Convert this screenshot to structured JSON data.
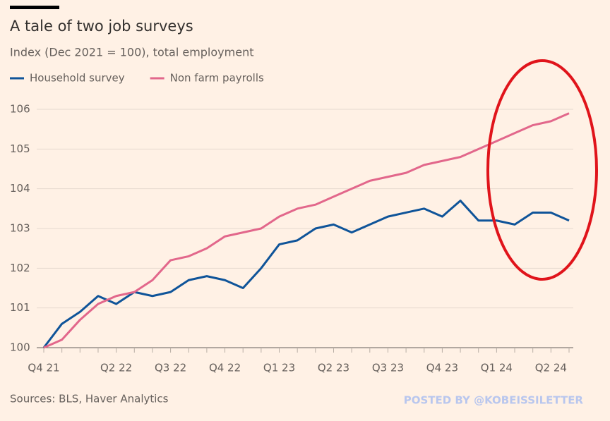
{
  "chart_data": {
    "type": "line",
    "title": "A tale of two job surveys",
    "subtitle": "Index (Dec 2021 = 100), total employment",
    "source": "Sources: BLS, Haver Analytics",
    "watermark": "POSTED BY @KOBEISSILETTER",
    "categories": [
      "Q4 21",
      null,
      null,
      null,
      "Q2 22",
      null,
      null,
      "Q3 22",
      null,
      null,
      "Q4 22",
      null,
      null,
      "Q1 23",
      null,
      null,
      "Q2 23",
      null,
      null,
      "Q3 23",
      null,
      null,
      "Q4 23",
      null,
      null,
      "Q1 24",
      null,
      null,
      "Q2 24",
      null
    ],
    "series": [
      {
        "name": "Household survey",
        "color": "#0f5499",
        "values": [
          100,
          100.6,
          100.9,
          101.3,
          101.1,
          101.4,
          101.3,
          101.4,
          101.7,
          101.8,
          101.7,
          101.5,
          102.0,
          102.6,
          102.7,
          103.0,
          103.1,
          102.9,
          103.1,
          103.3,
          103.4,
          103.5,
          103.3,
          103.7,
          103.2,
          103.2,
          103.1,
          103.4,
          103.4,
          103.2
        ]
      },
      {
        "name": "Non farm payrolls",
        "color": "#e2678b",
        "values": [
          100,
          100.2,
          100.7,
          101.1,
          101.3,
          101.4,
          101.7,
          102.2,
          102.3,
          102.5,
          102.8,
          102.9,
          103.0,
          103.3,
          103.5,
          103.6,
          103.8,
          104.0,
          104.2,
          104.3,
          104.4,
          104.6,
          104.7,
          104.8,
          105.0,
          105.2,
          105.4,
          105.6,
          105.7,
          105.9
        ]
      }
    ],
    "ylim": [
      100,
      106
    ],
    "yticks": [
      100,
      101,
      102,
      103,
      104,
      105,
      106
    ],
    "grid": true,
    "legend": "top-left"
  }
}
